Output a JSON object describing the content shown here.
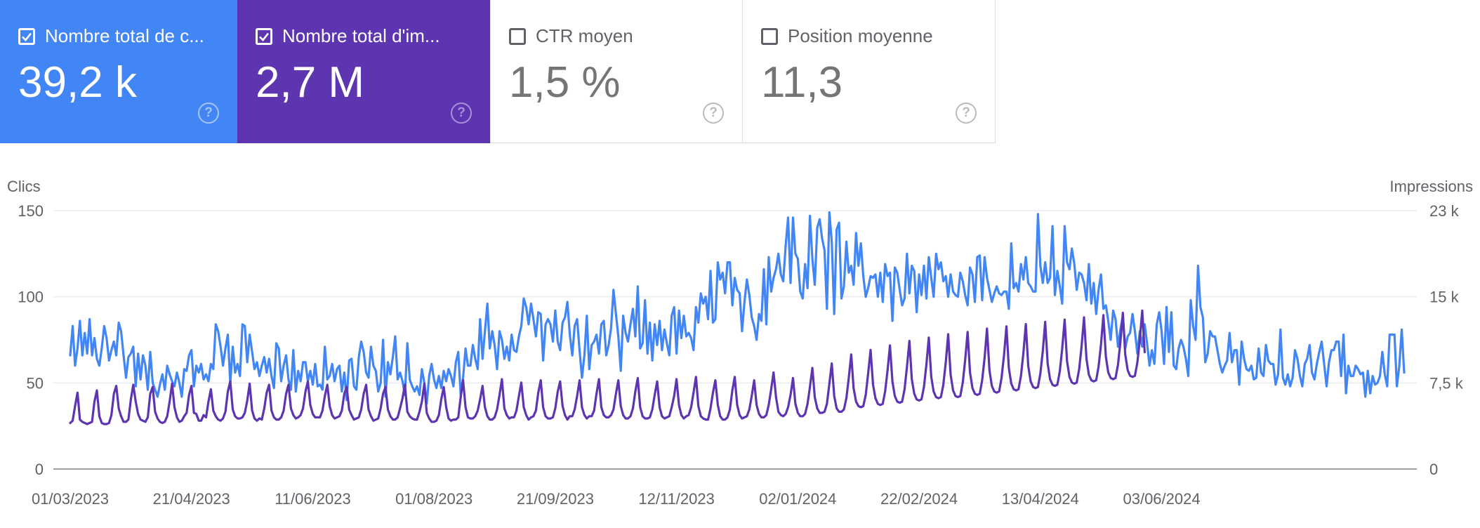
{
  "metrics": [
    {
      "label": "Nombre total de c...",
      "value": "39,2 k",
      "checked": true,
      "color": "#4285f4"
    },
    {
      "label": "Nombre total d'im...",
      "value": "2,7 M",
      "checked": true,
      "color": "#5e35b1"
    },
    {
      "label": "CTR moyen",
      "value": "1,5 %",
      "checked": false
    },
    {
      "label": "Position moyenne",
      "value": "11,3",
      "checked": false
    }
  ],
  "help_glyph": "?",
  "chart_data": {
    "type": "line",
    "x_labels": [
      "01/03/2023",
      "21/04/2023",
      "11/06/2023",
      "01/08/2023",
      "21/09/2023",
      "12/11/2023",
      "02/01/2024",
      "22/02/2024",
      "13/04/2024",
      "03/06/2024"
    ],
    "left_axis": {
      "label": "Clics",
      "ticks": [
        "0",
        "50",
        "100",
        "150"
      ],
      "range": [
        0,
        150
      ]
    },
    "right_axis": {
      "label": "Impressions",
      "ticks": [
        "0",
        "7,5 k",
        "15 k",
        "23 k"
      ],
      "range": [
        0,
        23000
      ]
    },
    "grid": true,
    "series": [
      {
        "axis": "left",
        "color": "#4285f4",
        "values": [
          66,
          83,
          60,
          70,
          86,
          66,
          79,
          67,
          87,
          66,
          76,
          64,
          60,
          70,
          83,
          76,
          63,
          69,
          74,
          66,
          85,
          80,
          66,
          53,
          65,
          67,
          71,
          48,
          67,
          52,
          66,
          60,
          46,
          68,
          50,
          46,
          42,
          49,
          55,
          46,
          60,
          55,
          51,
          48,
          56,
          50,
          42,
          58,
          57,
          66,
          69,
          48,
          60,
          56,
          61,
          52,
          55,
          51,
          61,
          58,
          84,
          80,
          71,
          60,
          70,
          78,
          50,
          71,
          56,
          61,
          54,
          84,
          83,
          62,
          78,
          68,
          58,
          62,
          54,
          60,
          65,
          56,
          64,
          54,
          47,
          73,
          70,
          51,
          60,
          66,
          52,
          46,
          69,
          45,
          57,
          51,
          62,
          62,
          51,
          57,
          49,
          61,
          48,
          49,
          46,
          71,
          52,
          54,
          61,
          51,
          58,
          60,
          45,
          56,
          40,
          63,
          64,
          48,
          46,
          65,
          74,
          68,
          56,
          53,
          71,
          60,
          57,
          45,
          50,
          75,
          42,
          62,
          55,
          65,
          77,
          52,
          56,
          51,
          43,
          73,
          52,
          48,
          45,
          48,
          43,
          58,
          50,
          38,
          54,
          61,
          52,
          47,
          54,
          47,
          57,
          51,
          58,
          54,
          48,
          62,
          68,
          43,
          53,
          70,
          60,
          60,
          72,
          64,
          58,
          87,
          64,
          80,
          96,
          70,
          80,
          72,
          58,
          80,
          75,
          64,
          71,
          63,
          78,
          69,
          68,
          77,
          83,
          99,
          94,
          84,
          96,
          87,
          77,
          91,
          90,
          63,
          84,
          87,
          84,
          74,
          92,
          74,
          69,
          85,
          88,
          97,
          78,
          66,
          83,
          87,
          69,
          53,
          66,
          89,
          58,
          72,
          74,
          78,
          67,
          84,
          86,
          66,
          72,
          82,
          104,
          90,
          77,
          57,
          89,
          79,
          74,
          84,
          93,
          77,
          106,
          70,
          73,
          98,
          67,
          85,
          63,
          84,
          72,
          86,
          69,
          81,
          73,
          66,
          89,
          94,
          67,
          92,
          76,
          89,
          77,
          79,
          76,
          69,
          94,
          85,
          102,
          96,
          100,
          87,
          115,
          85,
          87,
          120,
          110,
          114,
          102,
          120,
          120,
          95,
          111,
          104,
          102,
          80,
          97,
          110,
          101,
          88,
          83,
          75,
          90,
          86,
          116,
          84,
          123,
          103,
          111,
          116,
          125,
          113,
          109,
          130,
          146,
          108,
          146,
          125,
          122,
          103,
          99,
          119,
          105,
          147,
          122,
          107,
          140,
          145,
          134,
          127,
          93,
          149,
          132,
          90,
          139,
          143,
          99,
          106,
          132,
          114,
          118,
          107,
          137,
          118,
          131,
          112,
          100,
          105,
          112,
          111,
          113,
          100,
          114,
          97,
          119,
          112,
          114,
          86,
          117,
          114,
          104,
          95,
          99,
          125,
          102,
          118,
          115,
          91,
          113,
          101,
          118,
          99,
          123,
          111,
          100,
          125,
          116,
          120,
          109,
          112,
          100,
          113,
          103,
          101,
          100,
          114,
          109,
          101,
          95,
          117,
          113,
          97,
          123,
          124,
          98,
          123,
          111,
          104,
          97,
          102,
          106,
          102,
          101,
          103,
          103,
          93,
          131,
          105,
          108,
          103,
          119,
          110,
          123,
          108,
          106,
          103,
          103,
          148,
          118,
          108,
          120,
          108,
          111,
          141,
          101,
          115,
          106,
          96,
          141,
          120,
          116,
          128,
          119,
          104,
          114,
          113,
          108,
          98,
          119,
          96,
          108,
          90,
          104,
          113,
          93,
          95,
          86,
          75,
          92,
          87,
          71,
          81,
          89,
          70,
          77,
          79,
          90,
          80,
          67,
          80,
          71,
          84,
          73,
          60,
          69,
          61,
          84,
          91,
          80,
          61,
          94,
          68,
          91,
          60,
          58,
          70,
          75,
          71,
          64,
          54,
          98,
          83,
          75,
          118,
          94,
          88,
          62,
          67,
          80,
          77,
          77,
          69,
          61,
          56,
          60,
          63,
          79,
          62,
          69,
          69,
          49,
          74,
          64,
          58,
          57,
          60,
          52,
          53,
          70,
          56,
          54,
          72,
          63,
          61,
          61,
          49,
          55,
          81,
          53,
          49,
          55,
          48,
          53,
          69,
          64,
          54,
          48,
          61,
          64,
          72,
          56,
          52,
          61,
          68,
          74,
          61,
          48,
          62,
          69,
          69,
          74,
          74,
          54,
          78,
          44,
          60,
          54,
          54,
          60,
          58,
          55,
          56,
          42,
          57,
          44,
          54,
          49,
          50,
          54,
          68,
          55,
          48,
          78,
          78,
          78,
          48,
          60,
          81,
          56
        ]
      },
      {
        "axis": "right",
        "color": "#5e35b1",
        "values": [
          4100,
          4300,
          5600,
          6800,
          4400,
          4200,
          4100,
          4000,
          4100,
          4200,
          6000,
          7000,
          4700,
          4100,
          4000,
          4000,
          4100,
          4800,
          6700,
          7400,
          5400,
          4700,
          4200,
          4200,
          4400,
          6200,
          7500,
          6000,
          4900,
          4400,
          4300,
          4200,
          4600,
          6700,
          7300,
          5100,
          4500,
          4200,
          4100,
          4200,
          4700,
          6000,
          7600,
          5500,
          4600,
          4200,
          4300,
          4700,
          5000,
          6600,
          7400,
          5000,
          4900,
          4300,
          4300,
          4800,
          4600,
          6000,
          7100,
          5200,
          4700,
          4400,
          4300,
          4500,
          5100,
          6900,
          7800,
          5300,
          4700,
          4500,
          4500,
          4600,
          5000,
          6100,
          7600,
          5200,
          4500,
          4300,
          4500,
          4400,
          5400,
          6800,
          7500,
          5200,
          4600,
          4400,
          4400,
          4600,
          5200,
          6700,
          7500,
          5400,
          4800,
          4500,
          4600,
          4800,
          5400,
          6900,
          7800,
          5700,
          4900,
          4600,
          4600,
          4600,
          5200,
          6500,
          7500,
          5600,
          4800,
          4500,
          4600,
          4700,
          5200,
          6700,
          7300,
          5300,
          4800,
          4400,
          4500,
          4600,
          5300,
          6700,
          7500,
          5300,
          4700,
          4300,
          4400,
          4500,
          5400,
          6700,
          7300,
          5300,
          4700,
          4400,
          4400,
          4600,
          5400,
          6300,
          7500,
          5100,
          4700,
          4500,
          4400,
          4400,
          5100,
          6000,
          7600,
          5000,
          4500,
          4200,
          4200,
          4300,
          4800,
          6200,
          7300,
          5500,
          4500,
          4300,
          4400,
          4400,
          4600,
          6400,
          7900,
          5500,
          4600,
          4500,
          4500,
          4700,
          5200,
          6200,
          7400,
          5500,
          4700,
          4400,
          4400,
          4600,
          5300,
          6600,
          8000,
          5400,
          4800,
          4500,
          4600,
          4600,
          5200,
          6500,
          7700,
          5500,
          4800,
          4400,
          4600,
          4700,
          5200,
          6800,
          7900,
          5500,
          4700,
          4500,
          4500,
          4600,
          5400,
          6900,
          7800,
          5600,
          4800,
          4400,
          4700,
          4700,
          5300,
          6500,
          7900,
          5500,
          4800,
          4500,
          4700,
          4700,
          5200,
          6700,
          8000,
          5500,
          4800,
          4600,
          4600,
          4800,
          5300,
          6700,
          7900,
          5600,
          4800,
          4500,
          4500,
          4700,
          5400,
          6900,
          8100,
          5500,
          4700,
          4500,
          4500,
          4600,
          5300,
          6600,
          7800,
          5500,
          4700,
          4500,
          4600,
          4700,
          5500,
          6500,
          8000,
          5700,
          4800,
          4500,
          4700,
          4800,
          5500,
          6800,
          8200,
          5600,
          4700,
          4500,
          4400,
          4400,
          5400,
          6800,
          7900,
          5700,
          4700,
          4400,
          4400,
          4600,
          5300,
          7000,
          8200,
          5700,
          4800,
          4500,
          4600,
          4700,
          5300,
          6500,
          7900,
          5700,
          4900,
          4600,
          4600,
          4800,
          5700,
          7100,
          8600,
          6400,
          5100,
          4800,
          4700,
          4900,
          5500,
          6600,
          8100,
          5800,
          5000,
          4700,
          4700,
          4900,
          5800,
          7300,
          9000,
          6400,
          5400,
          5000,
          5000,
          5100,
          5800,
          7600,
          9400,
          6500,
          5400,
          5100,
          5100,
          5300,
          6300,
          8100,
          10200,
          7200,
          6000,
          5600,
          5500,
          5600,
          6600,
          8500,
          10600,
          7500,
          6300,
          5800,
          5700,
          5800,
          6900,
          8800,
          11000,
          7800,
          6500,
          6000,
          5900,
          6000,
          7100,
          9100,
          11400,
          8000,
          6700,
          6200,
          6100,
          6200,
          7300,
          9300,
          11700,
          8200,
          6900,
          6400,
          6300,
          6400,
          7500,
          9500,
          12000,
          8400,
          7000,
          6500,
          6400,
          6500,
          7700,
          9700,
          12200,
          8600,
          7200,
          6700,
          6600,
          6700,
          7900,
          9900,
          12500,
          8800,
          7400,
          6900,
          6800,
          6900,
          8100,
          10100,
          12700,
          9000,
          7600,
          7100,
          7000,
          7100,
          8300,
          10300,
          12900,
          9200,
          7800,
          7300,
          7200,
          7300,
          8500,
          10500,
          13100,
          9400,
          8000,
          7500,
          7400,
          7500,
          8700,
          10700,
          13300,
          9600,
          8200,
          7700,
          7600,
          7700,
          8900,
          10900,
          13500,
          9800,
          8400,
          7900,
          7800,
          7900,
          9100,
          11100,
          13700,
          10000,
          8600,
          8100,
          8000,
          8100,
          9300,
          11300,
          13900,
          10200,
          8800,
          8300,
          8200,
          8300,
          9500,
          11500,
          14100,
          10400
        ]
      }
    ]
  }
}
